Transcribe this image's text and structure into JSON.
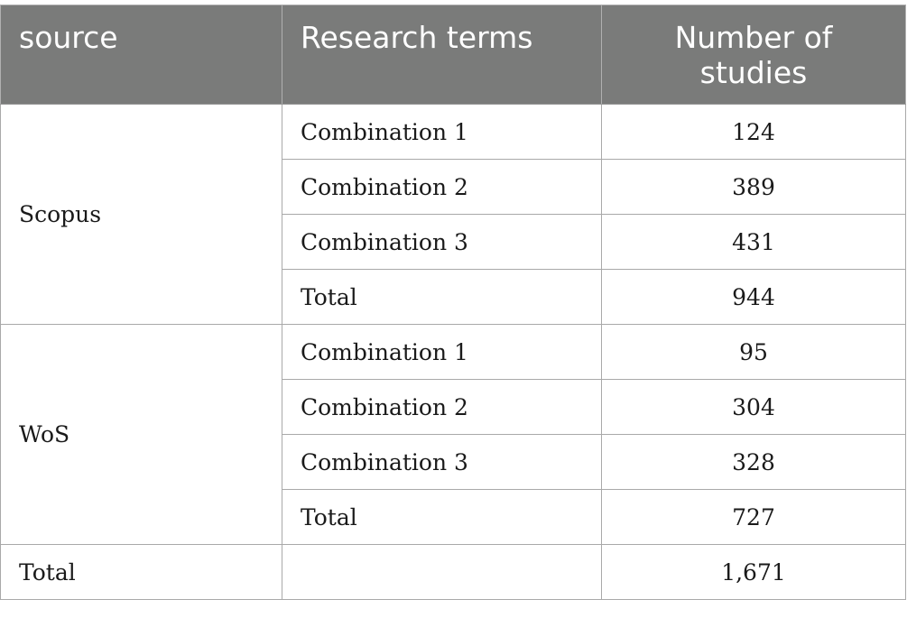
{
  "header": {
    "source": "source",
    "terms": "Research terms",
    "count": "Number of studies"
  },
  "groups": [
    {
      "source": "Scopus",
      "rows": [
        {
          "term": "Combination 1",
          "count": "124"
        },
        {
          "term": "Combination 2",
          "count": "389"
        },
        {
          "term": "Combination 3",
          "count": "431"
        },
        {
          "term": "Total",
          "count": "944"
        }
      ]
    },
    {
      "source": "WoS",
      "rows": [
        {
          "term": "Combination 1",
          "count": "95"
        },
        {
          "term": "Combination 2",
          "count": "304"
        },
        {
          "term": "Combination 3",
          "count": "328"
        },
        {
          "term": "Total",
          "count": "727"
        }
      ]
    }
  ],
  "grand_total": {
    "label": "Total",
    "term": "",
    "count": "1,671"
  }
}
